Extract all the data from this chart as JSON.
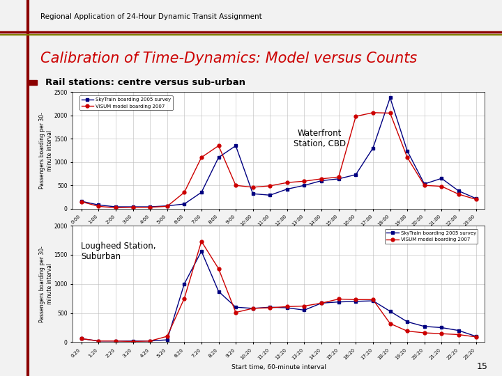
{
  "title": "Calibration of Time-Dynamics: Model versus Counts",
  "subtitle": "Rail stations: centre versus sub-urban",
  "header": "Regional Application of 24-Hour Dynamic Transit Assignment",
  "page_num": "15",
  "top_chart": {
    "station_label": "Waterfront\nStation, CBD",
    "xlabel": "Start time, 60-minute interval",
    "ylabel": "Passengers boarding per 30-\nminute interval",
    "ylim": [
      0,
      2500
    ],
    "yticks": [
      0,
      500,
      1000,
      1500,
      2000,
      2500
    ],
    "x_labels": [
      "0:00",
      "1:00",
      "2:00",
      "3:00",
      "4:00",
      "5:00",
      "6:00",
      "7:00",
      "8:00",
      "9:00",
      "10:00",
      "11:00",
      "12:00",
      "13:00",
      "14:00",
      "15:00",
      "16:00",
      "17:00",
      "18:00",
      "19:00",
      "20:00",
      "21:00",
      "22:00",
      "23:00"
    ],
    "survey": [
      160,
      80,
      40,
      40,
      40,
      60,
      100,
      350,
      1100,
      1350,
      320,
      290,
      420,
      500,
      600,
      640,
      730,
      1300,
      2380,
      1240,
      530,
      650,
      380,
      220
    ],
    "model": [
      150,
      50,
      20,
      30,
      30,
      50,
      350,
      1100,
      1350,
      500,
      460,
      490,
      560,
      590,
      640,
      680,
      1980,
      2060,
      2050,
      1100,
      500,
      480,
      310,
      200
    ]
  },
  "bottom_chart": {
    "station_label": "Lougheed Station,\nSuburban",
    "xlabel": "Start time, 60-minute interval",
    "ylabel": "Passengers boarding per 30-\nminute interval",
    "ylim": [
      0,
      2000
    ],
    "yticks": [
      0,
      500,
      1000,
      1500,
      2000
    ],
    "x_labels": [
      "0:20",
      "1:20",
      "2:20",
      "3:20",
      "4:20",
      "5:20",
      "6:20",
      "7:20",
      "8:20",
      "9:20",
      "10:20",
      "11:20",
      "12:20",
      "13:20",
      "14:20",
      "15:20",
      "16:20",
      "17:20",
      "18:20",
      "19:20",
      "20:20",
      "21:20",
      "22:20",
      "23:20"
    ],
    "survey": [
      60,
      20,
      20,
      20,
      20,
      40,
      1000,
      1560,
      870,
      600,
      580,
      600,
      590,
      550,
      670,
      690,
      700,
      710,
      530,
      350,
      270,
      250,
      200,
      100
    ],
    "model": [
      60,
      20,
      20,
      10,
      20,
      100,
      750,
      1730,
      1260,
      510,
      580,
      590,
      610,
      620,
      670,
      740,
      730,
      730,
      320,
      190,
      160,
      145,
      130,
      90
    ]
  },
  "survey_color": "#000080",
  "model_color": "#cc0000",
  "survey_label": "SkyTrain boarding 2005 survey",
  "model_label": "VISUM model boarding 2007",
  "slide_bg": "#f2f2f2",
  "white_bg": "#ffffff",
  "plot_bg": "#ffffff",
  "border_color": "#8B0000",
  "title_color": "#cc0000",
  "sep_line1": "#8B0000",
  "sep_line2": "#808000"
}
